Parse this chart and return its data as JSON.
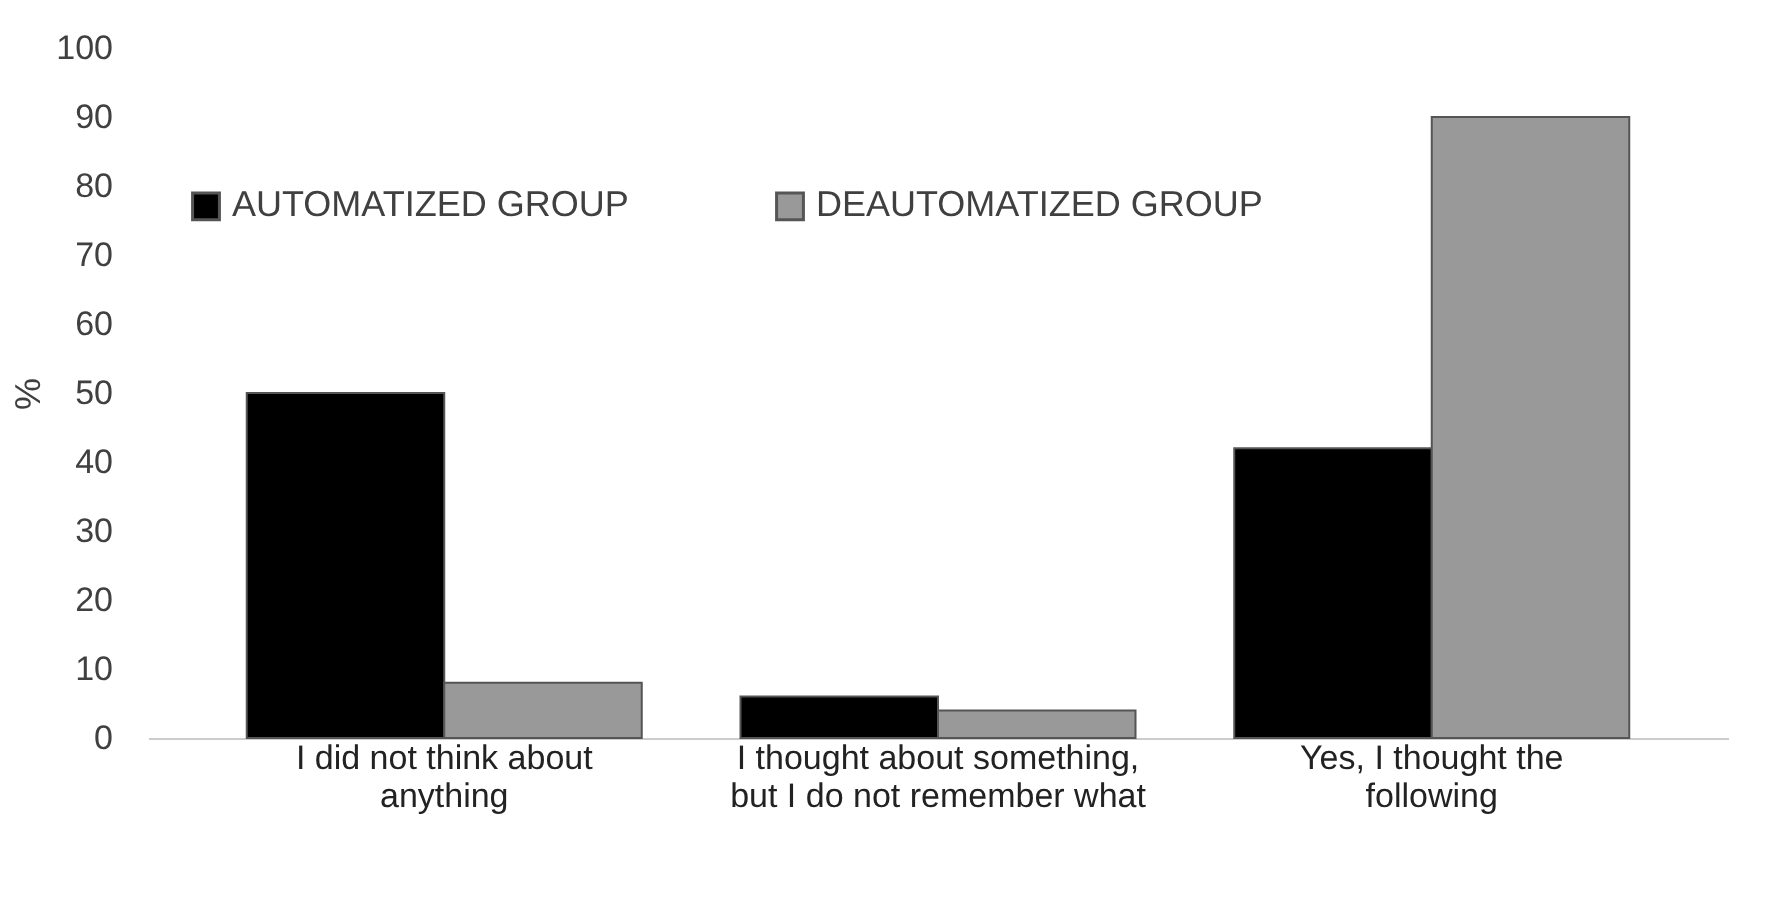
{
  "chart_data": {
    "type": "bar",
    "ylabel": "%",
    "categories": [
      "I did not think about anything",
      "I thought about something, but I do not remember what",
      "Yes, I thought the following"
    ],
    "series": [
      {
        "name": "AUTOMATIZED GROUP",
        "color": "#000000",
        "values": [
          50,
          6,
          42
        ]
      },
      {
        "name": "DEAUTOMATIZED GROUP",
        "color": "#999999",
        "values": [
          8,
          4,
          90
        ]
      }
    ],
    "ylim": [
      0,
      100
    ],
    "yticks": [
      0,
      10,
      20,
      30,
      40,
      50,
      60,
      70,
      80,
      90,
      100
    ],
    "grid": false,
    "legend": "top left"
  }
}
